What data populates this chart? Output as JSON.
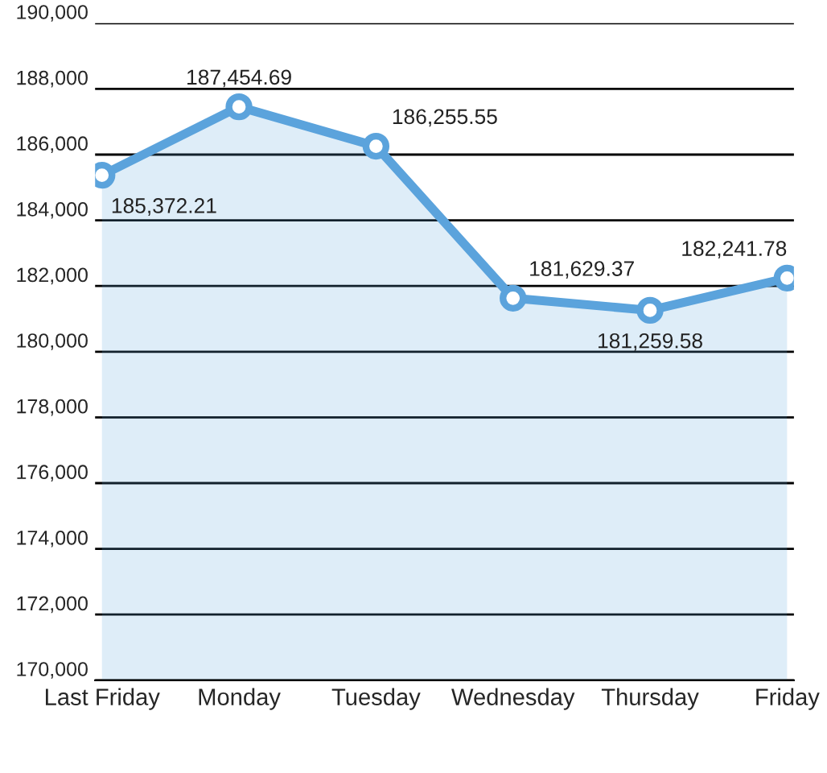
{
  "chart_data": {
    "type": "area",
    "categories": [
      "Last Friday",
      "Monday",
      "Tuesday",
      "Wednesday",
      "Thursday",
      "Friday"
    ],
    "series": [
      {
        "color": "#5ba3dc",
        "values": [
          185372.21,
          187454.69,
          186255.55,
          181629.37,
          181259.58,
          182241.78
        ],
        "value_labels": [
          "185,372.21",
          "187,454.69",
          "186,255.55",
          "181,629.37",
          "181,259.58",
          "182,241.78"
        ]
      }
    ],
    "ylim": [
      170000,
      190000
    ],
    "yticks": [
      {
        "value": 170000,
        "label": "170,000"
      },
      {
        "value": 172000,
        "label": "172,000"
      },
      {
        "value": 174000,
        "label": "174,000"
      },
      {
        "value": 176000,
        "label": "176,000"
      },
      {
        "value": 178000,
        "label": "178,000"
      },
      {
        "value": 180000,
        "label": "180,000"
      },
      {
        "value": 182000,
        "label": "182,000"
      },
      {
        "value": 184000,
        "label": "184,000"
      },
      {
        "value": 186000,
        "label": "186,000"
      },
      {
        "value": 188000,
        "label": "188,000"
      },
      {
        "value": 190000,
        "label": "190,000"
      }
    ],
    "grid": "y",
    "marker": "circle",
    "line_style": "solid",
    "legend": false
  }
}
